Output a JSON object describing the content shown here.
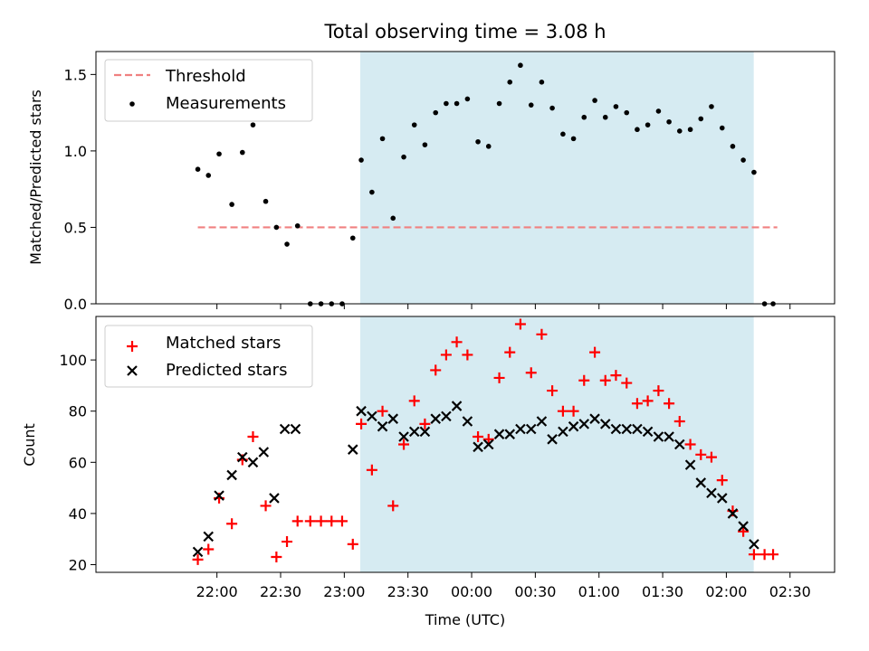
{
  "chart_data": [
    {
      "type": "scatter",
      "title": "Total observing time = 3.08 h",
      "xlabel": "",
      "ylabel": "Matched/Predicted stars",
      "x_unit": "time of day (UTC), x values in hours after 22:00",
      "xlim": [
        -0.95,
        4.85
      ],
      "ylim": [
        0,
        1.65
      ],
      "yticks": [
        "0.0",
        "0.5",
        "1.0",
        "1.5"
      ],
      "grid": false,
      "legend": "top-left",
      "shaded_span": {
        "from": 1.125,
        "to": 4.215,
        "color": "#add8e6"
      },
      "series": [
        {
          "name": "Threshold",
          "style": "dashed-line",
          "color": "#f08080",
          "x": [
            -0.15,
            4.4
          ],
          "y": [
            0.5,
            0.5
          ]
        },
        {
          "name": "Measurements",
          "style": "dot",
          "color": "#000000",
          "x": [
            -0.15,
            -0.067,
            0.017,
            0.117,
            0.2,
            0.283,
            0.383,
            0.467,
            0.55,
            0.633,
            0.733,
            0.817,
            0.9,
            0.983,
            1.067,
            1.133,
            1.217,
            1.3,
            1.383,
            1.467,
            1.55,
            1.633,
            1.717,
            1.8,
            1.883,
            1.967,
            2.05,
            2.133,
            2.217,
            2.3,
            2.383,
            2.467,
            2.55,
            2.633,
            2.717,
            2.8,
            2.883,
            2.967,
            3.05,
            3.133,
            3.217,
            3.3,
            3.383,
            3.467,
            3.55,
            3.633,
            3.717,
            3.8,
            3.883,
            3.967,
            4.05,
            4.133,
            4.217,
            4.3,
            4.367
          ],
          "y": [
            0.88,
            0.84,
            0.98,
            0.65,
            0.99,
            1.17,
            0.67,
            0.5,
            0.39,
            0.51,
            0.0,
            0.0,
            0.0,
            0.0,
            0.43,
            0.94,
            0.73,
            1.08,
            0.56,
            0.96,
            1.17,
            1.04,
            1.25,
            1.31,
            1.31,
            1.34,
            1.06,
            1.03,
            1.31,
            1.45,
            1.56,
            1.3,
            1.45,
            1.28,
            1.11,
            1.08,
            1.22,
            1.33,
            1.22,
            1.29,
            1.25,
            1.14,
            1.17,
            1.26,
            1.19,
            1.13,
            1.14,
            1.21,
            1.29,
            1.15,
            1.03,
            0.94,
            0.86,
            0.0,
            0.0
          ]
        }
      ]
    },
    {
      "type": "scatter",
      "title": "",
      "xlabel": "Time (UTC)",
      "ylabel": "Count",
      "x_unit": "time of day (UTC), x values in hours after 22:00",
      "xlim": [
        -0.95,
        4.85
      ],
      "ylim": [
        17,
        117
      ],
      "xticks": [
        "22:00",
        "22:30",
        "23:00",
        "23:30",
        "00:00",
        "00:30",
        "01:00",
        "01:30",
        "02:00",
        "02:30"
      ],
      "yticks": [
        "20",
        "40",
        "60",
        "80",
        "100"
      ],
      "grid": false,
      "legend": "top-left",
      "shaded_span": {
        "from": 1.125,
        "to": 4.215,
        "color": "#add8e6"
      },
      "series": [
        {
          "name": "Matched stars",
          "marker": "plus",
          "color": "#ff0000",
          "x": [
            -0.15,
            -0.067,
            0.017,
            0.117,
            0.2,
            0.283,
            0.383,
            0.467,
            0.55,
            0.633,
            0.733,
            0.817,
            0.9,
            0.983,
            1.067,
            1.133,
            1.217,
            1.3,
            1.383,
            1.467,
            1.55,
            1.633,
            1.717,
            1.8,
            1.883,
            1.967,
            2.05,
            2.133,
            2.217,
            2.3,
            2.383,
            2.467,
            2.55,
            2.633,
            2.717,
            2.8,
            2.883,
            2.967,
            3.05,
            3.133,
            3.217,
            3.3,
            3.383,
            3.467,
            3.55,
            3.633,
            3.717,
            3.8,
            3.883,
            3.967,
            4.05,
            4.133,
            4.217,
            4.3,
            4.367
          ],
          "y": [
            22,
            26,
            46,
            36,
            61,
            70,
            43,
            23,
            29,
            37,
            37,
            37,
            37,
            37,
            28,
            75,
            57,
            80,
            43,
            67,
            84,
            75,
            96,
            102,
            107,
            102,
            70,
            69,
            93,
            103,
            114,
            95,
            110,
            88,
            80,
            80,
            92,
            103,
            92,
            94,
            91,
            83,
            84,
            88,
            83,
            76,
            67,
            63,
            62,
            53,
            41,
            33,
            24,
            24,
            24
          ]
        },
        {
          "name": "Predicted stars",
          "marker": "x",
          "color": "#000000",
          "x": [
            -0.15,
            -0.067,
            0.017,
            0.117,
            0.2,
            0.283,
            0.367,
            0.45,
            0.533,
            0.617,
            1.067,
            1.133,
            1.217,
            1.3,
            1.383,
            1.467,
            1.55,
            1.633,
            1.717,
            1.8,
            1.883,
            1.967,
            2.05,
            2.133,
            2.217,
            2.3,
            2.383,
            2.467,
            2.55,
            2.633,
            2.717,
            2.8,
            2.883,
            2.967,
            3.05,
            3.133,
            3.217,
            3.3,
            3.383,
            3.467,
            3.55,
            3.633,
            3.717,
            3.8,
            3.883,
            3.967,
            4.05,
            4.133,
            4.217
          ],
          "y": [
            25,
            31,
            47,
            55,
            62,
            60,
            64,
            46,
            73,
            73,
            65,
            80,
            78,
            74,
            77,
            70,
            72,
            72,
            77,
            78,
            82,
            76,
            66,
            67,
            71,
            71,
            73,
            73,
            76,
            69,
            72,
            74,
            75,
            77,
            75,
            73,
            73,
            73,
            72,
            70,
            70,
            67,
            59,
            52,
            48,
            46,
            40,
            35,
            28
          ]
        }
      ]
    }
  ]
}
